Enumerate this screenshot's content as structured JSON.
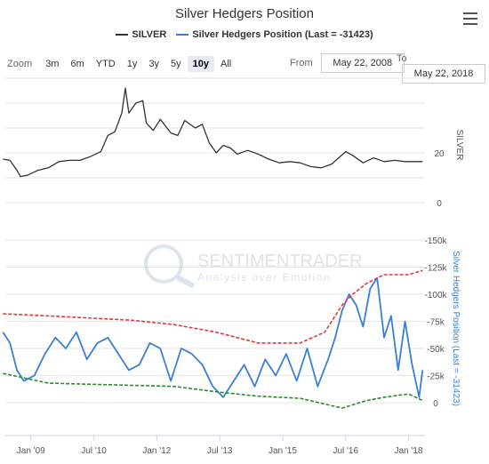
{
  "title": "Silver Hedgers Position",
  "menu_icon": "hamburger-menu-icon",
  "legend": [
    {
      "name": "SILVER",
      "color": "#333333"
    },
    {
      "name": "Silver Hedgers Position (Last = -31423)",
      "color": "#3a7fd5"
    }
  ],
  "zoom": {
    "label": "Zoom",
    "buttons": [
      "3m",
      "6m",
      "YTD",
      "1y",
      "3y",
      "5y",
      "10y",
      "All"
    ],
    "active": "10y"
  },
  "range": {
    "from_label": "From",
    "from_value": "May 22, 2008",
    "to_label": "To",
    "to_value": "May 22, 2018"
  },
  "watermark": {
    "line1": "SENTIMENTRADER",
    "line2": "Analysis over Emotion"
  },
  "chart_data": [
    {
      "type": "line",
      "name": "silver-price-panel",
      "x_ticks": [
        "Jan '09",
        "Jul '10",
        "Jan '12",
        "Jul '13",
        "Jan '15",
        "Jul '16",
        "Jan '18"
      ],
      "x_range": [
        "2008-05-22",
        "2018-05-22"
      ],
      "y_ticks": [
        "20",
        "0"
      ],
      "ylabel": "SILVER",
      "ylim": [
        0,
        50
      ],
      "series": [
        {
          "name": "SILVER",
          "color": "#333333",
          "x": [
            "2008-05",
            "2008-07",
            "2008-09",
            "2008-10",
            "2008-12",
            "2009-03",
            "2009-06",
            "2009-09",
            "2009-12",
            "2010-03",
            "2010-06",
            "2010-09",
            "2010-11",
            "2011-01",
            "2011-03",
            "2011-04",
            "2011-05",
            "2011-07",
            "2011-09",
            "2011-10",
            "2011-12",
            "2012-02",
            "2012-05",
            "2012-07",
            "2012-09",
            "2012-10",
            "2012-12",
            "2013-02",
            "2013-04",
            "2013-06",
            "2013-08",
            "2013-10",
            "2013-12",
            "2014-03",
            "2014-06",
            "2014-09",
            "2014-12",
            "2015-03",
            "2015-06",
            "2015-09",
            "2015-12",
            "2016-03",
            "2016-07",
            "2016-09",
            "2016-12",
            "2017-03",
            "2017-06",
            "2017-09",
            "2017-12",
            "2018-03",
            "2018-05"
          ],
          "values": [
            17.5,
            17.0,
            13.0,
            10.5,
            11.0,
            13.0,
            14.0,
            16.5,
            17.0,
            17.0,
            18.5,
            20.5,
            27.0,
            28.5,
            36.0,
            46.0,
            36.0,
            40.0,
            41.0,
            32.0,
            29.0,
            33.5,
            28.0,
            27.0,
            33.0,
            32.0,
            30.0,
            31.5,
            24.0,
            20.0,
            23.0,
            22.0,
            19.5,
            21.0,
            19.5,
            17.5,
            16.0,
            16.5,
            16.0,
            14.5,
            14.0,
            15.5,
            20.5,
            19.0,
            16.0,
            18.0,
            16.5,
            17.0,
            16.5,
            16.5,
            16.5
          ]
        }
      ]
    },
    {
      "type": "line",
      "name": "hedgers-position-panel",
      "x_ticks": [
        "Jan '09",
        "Jul '10",
        "Jan '12",
        "Jul '13",
        "Jan '15",
        "Jul '16",
        "Jan '18"
      ],
      "x_range": [
        "2008-05-22",
        "2018-05-22"
      ],
      "y_ticks": [
        "-150k",
        "-125k",
        "-100k",
        "-75k",
        "-50k",
        "-25k",
        "0"
      ],
      "ylabel": "Silver Hedgers Position (Last = -31423)",
      "ylim": [
        -150000,
        0
      ],
      "y_reversed": true,
      "series": [
        {
          "name": "Silver Hedgers Position (Last = -31423)",
          "color": "#3a7fd5",
          "x": [
            "2008-05",
            "2008-07",
            "2008-09",
            "2008-11",
            "2009-02",
            "2009-05",
            "2009-08",
            "2009-11",
            "2010-02",
            "2010-05",
            "2010-08",
            "2010-11",
            "2011-02",
            "2011-05",
            "2011-08",
            "2011-11",
            "2012-02",
            "2012-05",
            "2012-08",
            "2012-11",
            "2013-02",
            "2013-05",
            "2013-08",
            "2013-11",
            "2014-02",
            "2014-05",
            "2014-08",
            "2014-11",
            "2015-02",
            "2015-05",
            "2015-08",
            "2015-11",
            "2016-02",
            "2016-04",
            "2016-06",
            "2016-08",
            "2016-10",
            "2016-12",
            "2017-02",
            "2017-04",
            "2017-06",
            "2017-08",
            "2017-10",
            "2017-12",
            "2018-02",
            "2018-04",
            "2018-05"
          ],
          "values": [
            -65000,
            -55000,
            -30000,
            -20000,
            -25000,
            -45000,
            -60000,
            -50000,
            -65000,
            -40000,
            -55000,
            -60000,
            -45000,
            -30000,
            -35000,
            -55000,
            -50000,
            -20000,
            -50000,
            -45000,
            -35000,
            -15000,
            -5000,
            -20000,
            -35000,
            -15000,
            -40000,
            -25000,
            -45000,
            -20000,
            -50000,
            -15000,
            -40000,
            -60000,
            -85000,
            -100000,
            -90000,
            -70000,
            -105000,
            -115000,
            -60000,
            -80000,
            -30000,
            -75000,
            -35000,
            -5000,
            -30000
          ]
        },
        {
          "name": "",
          "color": "#e03a3a",
          "dashed": true,
          "x": [
            "2008-05",
            "2009-06",
            "2010-06",
            "2011-06",
            "2012-06",
            "2013-06",
            "2014-06",
            "2015-06",
            "2016-01",
            "2016-06",
            "2016-09",
            "2017-01",
            "2017-06",
            "2018-01",
            "2018-05"
          ],
          "values": [
            -82000,
            -80000,
            -78000,
            -76000,
            -72000,
            -65000,
            -55000,
            -55000,
            -65000,
            -90000,
            -100000,
            -110000,
            -118000,
            -118000,
            -122000
          ]
        },
        {
          "name": "",
          "color": "#2a8a2a",
          "dashed": true,
          "x": [
            "2008-05",
            "2009-06",
            "2010-06",
            "2011-06",
            "2012-06",
            "2013-06",
            "2014-06",
            "2015-06",
            "2016-06",
            "2017-01",
            "2017-06",
            "2018-01",
            "2018-05"
          ],
          "values": [
            -27000,
            -18000,
            -17000,
            -16000,
            -15000,
            -10000,
            -6000,
            -4000,
            5000,
            -2000,
            -5000,
            -8000,
            -2000
          ]
        }
      ]
    }
  ]
}
